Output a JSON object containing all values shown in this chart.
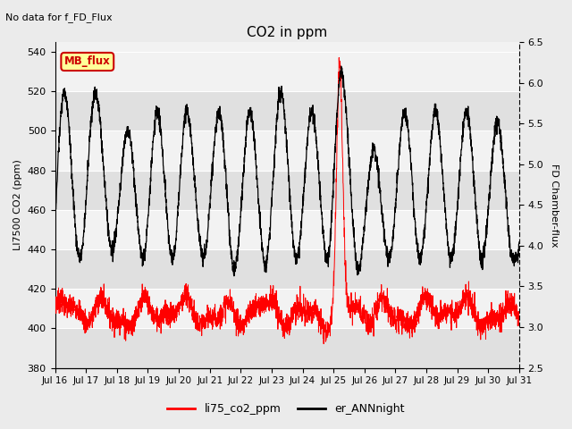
{
  "title": "CO2 in ppm",
  "subtitle": "No data for f_FD_Flux",
  "ylabel_left": "LI7500 CO2 (ppm)",
  "ylabel_right": "FD Chamber-flux",
  "ylim_left": [
    380,
    545
  ],
  "ylim_right": [
    2.5,
    6.5
  ],
  "yticks_left": [
    380,
    400,
    420,
    440,
    460,
    480,
    500,
    520,
    540
  ],
  "yticks_right": [
    2.5,
    3.0,
    3.5,
    4.0,
    4.5,
    5.0,
    5.5,
    6.0,
    6.5
  ],
  "xtick_labels": [
    "Jul 16",
    "Jul 17",
    "Jul 18",
    "Jul 19",
    "Jul 20",
    "Jul 21",
    "Jul 22",
    "Jul 23",
    "Jul 24",
    "Jul 25",
    "Jul 26",
    "Jul 27",
    "Jul 28",
    "Jul 29",
    "Jul 30",
    "Jul 31"
  ],
  "legend_entries": [
    "li75_co2_ppm",
    "er_ANNnight"
  ],
  "legend_colors": [
    "red",
    "black"
  ],
  "background_color": "#ebebeb",
  "plot_bg_light": "#f2f2f2",
  "plot_bg_dark": "#e0e0e0",
  "mb_flux_label": "MB_flux",
  "mb_flux_bg": "#ffff99",
  "mb_flux_border": "#cc0000",
  "mb_flux_text": "#cc0000",
  "n_days": 15,
  "n_points": 3000,
  "red_base": 408,
  "red_amp": 6,
  "red_noise_std": 3,
  "black_min": 430,
  "black_max": 530
}
